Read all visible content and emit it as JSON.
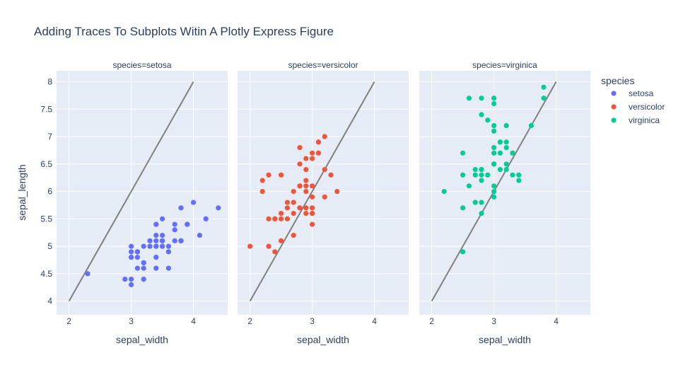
{
  "chart_data": {
    "type": "scatter",
    "title": "Adding Traces To Subplots Witin A Plotly Express Figure",
    "xlabel": "sepal_width",
    "ylabel": "sepal_length",
    "xlim": [
      1.8,
      4.55
    ],
    "ylim": [
      3.75,
      8.2
    ],
    "x_ticks": [
      2,
      3,
      4
    ],
    "y_ticks": [
      4,
      4.5,
      5,
      5.5,
      6,
      6.5,
      7,
      7.5,
      8
    ],
    "y_tick_labels": [
      "4",
      "4.5",
      "5",
      "5.5",
      "6",
      "6.5",
      "7",
      "7.5",
      "8"
    ],
    "grid": true,
    "legend": {
      "title": "species",
      "placement": "top-right",
      "entries": [
        "setosa",
        "versicolor",
        "virginica"
      ]
    },
    "colors": {
      "setosa": "#636efa",
      "versicolor": "#EF553B",
      "virginica": "#00cc96",
      "line": "#808080",
      "plot_bg": "#E5ECF6",
      "grid": "#ffffff",
      "text": "#2a3f5f"
    },
    "reference_line": {
      "x": [
        2,
        4
      ],
      "y": [
        4,
        8
      ]
    },
    "facets": [
      {
        "label": "species=setosa",
        "series": "setosa",
        "points": [
          [
            3.5,
            5.1
          ],
          [
            3.0,
            4.9
          ],
          [
            3.2,
            4.7
          ],
          [
            3.1,
            4.6
          ],
          [
            3.6,
            5.0
          ],
          [
            3.9,
            5.4
          ],
          [
            3.4,
            4.6
          ],
          [
            3.4,
            5.0
          ],
          [
            2.9,
            4.4
          ],
          [
            3.1,
            4.9
          ],
          [
            3.7,
            5.4
          ],
          [
            3.4,
            4.8
          ],
          [
            3.0,
            4.8
          ],
          [
            3.0,
            4.3
          ],
          [
            4.0,
            5.8
          ],
          [
            4.4,
            5.7
          ],
          [
            3.9,
            5.4
          ],
          [
            3.5,
            5.1
          ],
          [
            3.8,
            5.7
          ],
          [
            3.8,
            5.1
          ],
          [
            3.4,
            5.4
          ],
          [
            3.7,
            5.1
          ],
          [
            3.6,
            4.6
          ],
          [
            3.3,
            5.1
          ],
          [
            3.4,
            4.8
          ],
          [
            3.0,
            5.0
          ],
          [
            3.4,
            5.0
          ],
          [
            3.5,
            5.2
          ],
          [
            3.4,
            5.2
          ],
          [
            3.2,
            4.7
          ],
          [
            3.1,
            4.8
          ],
          [
            3.4,
            5.4
          ],
          [
            4.1,
            5.2
          ],
          [
            4.2,
            5.5
          ],
          [
            3.1,
            4.9
          ],
          [
            3.2,
            5.0
          ],
          [
            3.5,
            5.5
          ],
          [
            3.6,
            4.9
          ],
          [
            3.0,
            4.4
          ],
          [
            3.4,
            5.1
          ],
          [
            3.5,
            5.0
          ],
          [
            2.3,
            4.5
          ],
          [
            3.2,
            4.4
          ],
          [
            3.5,
            5.0
          ],
          [
            3.8,
            5.1
          ],
          [
            3.0,
            4.8
          ],
          [
            3.8,
            5.1
          ],
          [
            3.2,
            4.6
          ],
          [
            3.7,
            5.3
          ],
          [
            3.3,
            5.0
          ]
        ]
      },
      {
        "label": "species=versicolor",
        "series": "versicolor",
        "points": [
          [
            3.2,
            7.0
          ],
          [
            3.2,
            6.4
          ],
          [
            3.1,
            6.9
          ],
          [
            2.3,
            5.5
          ],
          [
            2.8,
            6.5
          ],
          [
            2.8,
            5.7
          ],
          [
            3.3,
            6.3
          ],
          [
            2.4,
            4.9
          ],
          [
            2.9,
            6.6
          ],
          [
            2.7,
            5.2
          ],
          [
            2.0,
            5.0
          ],
          [
            3.0,
            5.9
          ],
          [
            2.2,
            6.0
          ],
          [
            2.9,
            6.1
          ],
          [
            2.9,
            5.6
          ],
          [
            3.1,
            6.7
          ],
          [
            3.0,
            5.6
          ],
          [
            2.7,
            5.8
          ],
          [
            2.2,
            6.2
          ],
          [
            2.5,
            5.6
          ],
          [
            3.2,
            5.9
          ],
          [
            2.8,
            6.1
          ],
          [
            2.5,
            6.3
          ],
          [
            2.8,
            6.1
          ],
          [
            2.9,
            6.4
          ],
          [
            3.0,
            6.6
          ],
          [
            2.8,
            6.8
          ],
          [
            3.0,
            6.7
          ],
          [
            2.9,
            6.0
          ],
          [
            2.6,
            5.7
          ],
          [
            2.4,
            5.5
          ],
          [
            2.4,
            5.5
          ],
          [
            2.7,
            5.8
          ],
          [
            2.7,
            6.0
          ],
          [
            3.0,
            5.4
          ],
          [
            3.4,
            6.0
          ],
          [
            3.1,
            6.7
          ],
          [
            2.3,
            6.3
          ],
          [
            3.0,
            5.6
          ],
          [
            2.5,
            5.5
          ],
          [
            2.6,
            5.5
          ],
          [
            3.0,
            6.1
          ],
          [
            2.6,
            5.8
          ],
          [
            2.3,
            5.0
          ],
          [
            2.7,
            5.6
          ],
          [
            3.0,
            5.7
          ],
          [
            2.9,
            5.7
          ],
          [
            2.9,
            6.2
          ],
          [
            2.5,
            5.1
          ],
          [
            2.8,
            5.7
          ]
        ]
      },
      {
        "label": "species=virginica",
        "series": "virginica",
        "points": [
          [
            3.3,
            6.3
          ],
          [
            2.7,
            5.8
          ],
          [
            3.0,
            7.1
          ],
          [
            2.9,
            6.3
          ],
          [
            3.0,
            6.5
          ],
          [
            3.0,
            7.6
          ],
          [
            2.5,
            4.9
          ],
          [
            2.9,
            7.3
          ],
          [
            2.5,
            6.7
          ],
          [
            3.6,
            7.2
          ],
          [
            3.2,
            6.5
          ],
          [
            2.7,
            6.4
          ],
          [
            3.0,
            6.8
          ],
          [
            2.5,
            5.7
          ],
          [
            2.8,
            5.8
          ],
          [
            3.2,
            6.4
          ],
          [
            3.0,
            6.5
          ],
          [
            3.8,
            7.7
          ],
          [
            2.6,
            7.7
          ],
          [
            2.2,
            6.0
          ],
          [
            3.2,
            6.9
          ],
          [
            2.8,
            5.6
          ],
          [
            2.8,
            7.7
          ],
          [
            2.7,
            6.3
          ],
          [
            3.3,
            6.7
          ],
          [
            3.2,
            7.2
          ],
          [
            2.8,
            6.2
          ],
          [
            3.0,
            6.1
          ],
          [
            2.8,
            6.4
          ],
          [
            3.0,
            7.2
          ],
          [
            2.8,
            7.4
          ],
          [
            3.8,
            7.9
          ],
          [
            2.8,
            6.4
          ],
          [
            2.8,
            6.3
          ],
          [
            2.6,
            6.1
          ],
          [
            3.0,
            7.7
          ],
          [
            3.4,
            6.3
          ],
          [
            3.1,
            6.4
          ],
          [
            3.0,
            6.0
          ],
          [
            3.1,
            6.9
          ],
          [
            3.1,
            6.7
          ],
          [
            3.1,
            6.9
          ],
          [
            2.7,
            5.8
          ],
          [
            3.2,
            6.8
          ],
          [
            3.3,
            6.7
          ],
          [
            3.0,
            6.7
          ],
          [
            2.5,
            6.3
          ],
          [
            3.0,
            6.5
          ],
          [
            3.4,
            6.2
          ],
          [
            3.0,
            5.9
          ]
        ]
      }
    ]
  }
}
